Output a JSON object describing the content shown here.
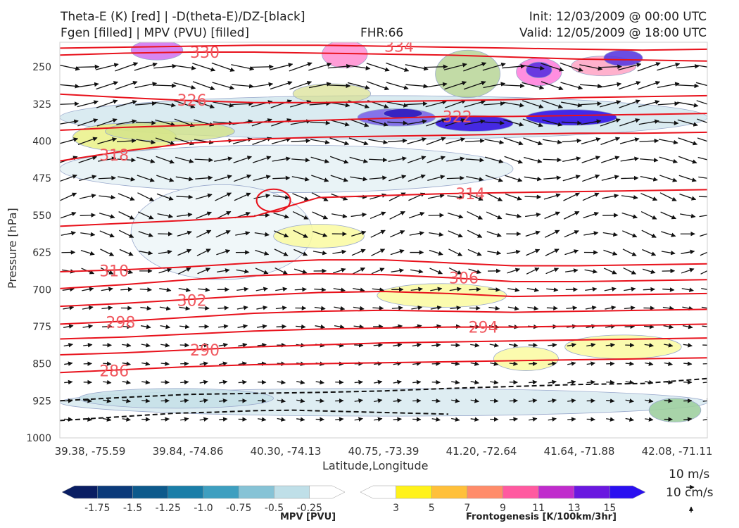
{
  "header": {
    "title_line1": "Theta-E (K) [red] | -D(theta-E)/DZ-[black]",
    "title_line2": "Fgen [filled] | MPV (PVU) [filled]",
    "fhr": "FHR:66",
    "init": "Init: 12/03/2009 @ 00:00 UTC",
    "valid": "Valid: 12/05/2009 @ 18:00 UTC"
  },
  "chart_data": {
    "type": "cross-section",
    "xlabel": "Latitude,Longitude",
    "ylabel": "Pressure [hPa]",
    "x_ticks": [
      "39.38, -75.59",
      "39.84, -74.86",
      "40.30, -74.13",
      "40.75, -73.39",
      "41.20, -72.64",
      "41.64, -71.88",
      "42.08, -71.11"
    ],
    "y_ticks": [
      250,
      325,
      400,
      475,
      550,
      625,
      700,
      775,
      850,
      925,
      1000
    ],
    "ylim": [
      1000,
      200
    ],
    "theta_e_contours": [
      {
        "value": 286,
        "label": "286",
        "p": [
          868,
          862,
          856,
          852,
          850,
          848,
          846,
          844,
          842,
          840,
          838
        ]
      },
      {
        "value": 290,
        "label": "290",
        "p": [
          832,
          828,
          822,
          816,
          812,
          808,
          806,
          804,
          802,
          800,
          798
        ]
      },
      {
        "value": 294,
        "label": "294",
        "p": [
          800,
          796,
          790,
          784,
          780,
          778,
          776,
          776,
          774,
          772,
          770
        ]
      },
      {
        "value": 298,
        "label": "298",
        "p": [
          770,
          764,
          756,
          748,
          744,
          742,
          744,
          746,
          744,
          742,
          740
        ]
      },
      {
        "value": 302,
        "label": "302",
        "p": [
          734,
          728,
          720,
          712,
          706,
          704,
          708,
          714,
          712,
          710,
          708
        ]
      },
      {
        "value": 306,
        "label": "306",
        "p": [
          698,
          690,
          680,
          672,
          668,
          670,
          676,
          684,
          684,
          682,
          680
        ]
      },
      {
        "value": 310,
        "label": "310",
        "p": [
          664,
          660,
          654,
          646,
          640,
          640,
          646,
          652,
          652,
          650,
          648
        ]
      },
      {
        "value": 314,
        "label": "314",
        "p": [
          572,
          566,
          560,
          552,
          514,
          510,
          506,
          504,
          502,
          500,
          498
        ]
      },
      {
        "value": 318,
        "label": "318",
        "p": [
          440,
          420,
          404,
          396,
          392,
          390,
          388,
          386,
          384,
          384,
          382
        ]
      },
      {
        "value": 322,
        "label": "322",
        "p": [
          378,
          372,
          368,
          362,
          358,
          354,
          350,
          350,
          348,
          346,
          344
        ]
      },
      {
        "value": 326,
        "label": "326",
        "p": [
          305,
          312,
          318,
          322,
          322,
          320,
          318,
          316,
          312,
          310,
          308
        ]
      },
      {
        "value": 330,
        "label": "330",
        "p": [
          226,
          222,
          220,
          220,
          222,
          224,
          226,
          230,
          234,
          236,
          238
        ]
      },
      {
        "value": 334,
        "label": "334",
        "p": [
          212,
          210,
          208,
          206,
          206,
          208,
          210,
          212,
          214,
          216,
          214
        ]
      }
    ],
    "mpv_colorbar": {
      "label": "MPV [PVU]",
      "ticks": [
        "-1.75",
        "-1.5",
        "-1.25",
        "-1.0",
        "-0.75",
        "-0.5",
        "-0.25"
      ],
      "colors": [
        "#0a1e63",
        "#0b3a7a",
        "#0d5a8c",
        "#1a7ea8",
        "#3e9fc0",
        "#86c3d6",
        "#bfdfe8",
        "#ffffff"
      ]
    },
    "fgen_colorbar": {
      "label": "Frontogenesis [K/100km/3hr]",
      "ticks": [
        "3",
        "5",
        "7",
        "9",
        "11",
        "13",
        "15"
      ],
      "colors": [
        "#ffffff",
        "#fff21a",
        "#ffc03a",
        "#ff8c6a",
        "#ff5aa0",
        "#c02ccc",
        "#6a18e0",
        "#2a10f0"
      ]
    },
    "wind_legend": {
      "horizontal": "10 m/s",
      "vertical": "10 cm/s"
    }
  }
}
